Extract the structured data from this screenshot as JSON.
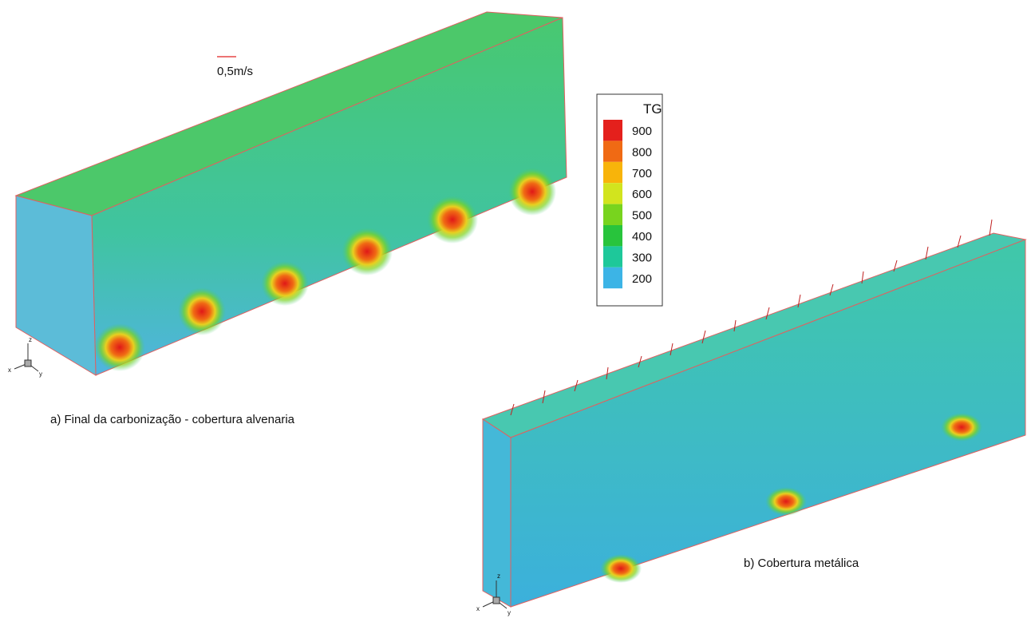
{
  "panel_a": {
    "caption": "a) Final da carbonização - cobertura alvenaria",
    "vector_scale": "0,5m/s",
    "triad": {
      "x": "x",
      "y": "y",
      "z": "z"
    }
  },
  "panel_b": {
    "caption": "b) Cobertura metálica",
    "triad": {
      "x": "x",
      "y": "y",
      "z": "z"
    }
  },
  "legend": {
    "title": "TG",
    "levels": [
      {
        "value": 900,
        "color": "#e4201c"
      },
      {
        "value": 800,
        "color": "#f06a14"
      },
      {
        "value": 700,
        "color": "#f8b40a"
      },
      {
        "value": 600,
        "color": "#d2e41e"
      },
      {
        "value": 500,
        "color": "#78d41e"
      },
      {
        "value": 400,
        "color": "#28c43c"
      },
      {
        "value": 300,
        "color": "#1ec89a"
      },
      {
        "value": 200,
        "color": "#3cb4e6"
      }
    ]
  }
}
